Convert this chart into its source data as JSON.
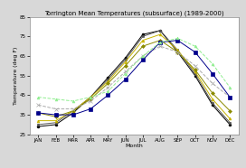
{
  "title": "Torrington Mean Temperatures (subsurface) (1989-2000)",
  "xlabel": "Month",
  "ylabel": "Temperature (deg F)",
  "months": [
    "JAN",
    "FEB",
    "MAR",
    "APR",
    "MAY",
    "JUN",
    "JUL",
    "AUG",
    "SEP",
    "OCT",
    "NOV",
    "DEC"
  ],
  "ylim": [
    25,
    85
  ],
  "yticks": [
    25,
    35,
    45,
    55,
    65,
    75,
    85
  ],
  "series": {
    "1-Mean": {
      "color": "#000000",
      "marker": "o",
      "ms": 2.0,
      "lw": 0.7,
      "ls": "-",
      "values": [
        29,
        30,
        36,
        44,
        54,
        64,
        76,
        78,
        67,
        55,
        40,
        30
      ]
    },
    "2.25-Mean": {
      "color": "#555555",
      "marker": "s",
      "ms": 2.0,
      "lw": 0.7,
      "ls": "-",
      "values": [
        30,
        31,
        37,
        44,
        53,
        63,
        75,
        78,
        68,
        56,
        41,
        31
      ]
    },
    "4-Mean": {
      "color": "#c8b400",
      "marker": "^",
      "ms": 2.0,
      "lw": 0.7,
      "ls": "-",
      "values": [
        32,
        32,
        37,
        44,
        52,
        62,
        73,
        76,
        68,
        57,
        43,
        33
      ]
    },
    "8-Mean": {
      "color": "#8b8b00",
      "marker": "D",
      "ms": 2.0,
      "lw": 0.7,
      "ls": "-",
      "values": [
        36,
        34,
        37,
        43,
        51,
        60,
        70,
        73,
        67,
        58,
        46,
        37
      ]
    },
    "20-In": {
      "color": "#aaaaaa",
      "marker": "x",
      "ms": 2.5,
      "lw": 0.7,
      "ls": "--",
      "values": [
        40,
        38,
        38,
        42,
        49,
        57,
        65,
        70,
        67,
        60,
        51,
        44
      ]
    },
    "40-In": {
      "color": "#00008b",
      "marker": "s",
      "ms": 2.5,
      "lw": 0.7,
      "ls": "-",
      "values": [
        36,
        35,
        35,
        38,
        45,
        53,
        63,
        72,
        73,
        67,
        56,
        44
      ]
    },
    "72-In": {
      "color": "#90ee90",
      "marker": "^",
      "ms": 2.0,
      "lw": 0.7,
      "ls": "--",
      "values": [
        44,
        43,
        42,
        44,
        47,
        56,
        65,
        72,
        74,
        70,
        61,
        49
      ]
    }
  },
  "plot_bg": "#ffffff",
  "fig_bg": "#d8d8d8",
  "grid_color": "#ffffff",
  "title_fontsize": 5.0,
  "axis_fontsize": 4.5,
  "tick_fontsize": 4.0,
  "legend_fontsize": 3.2
}
